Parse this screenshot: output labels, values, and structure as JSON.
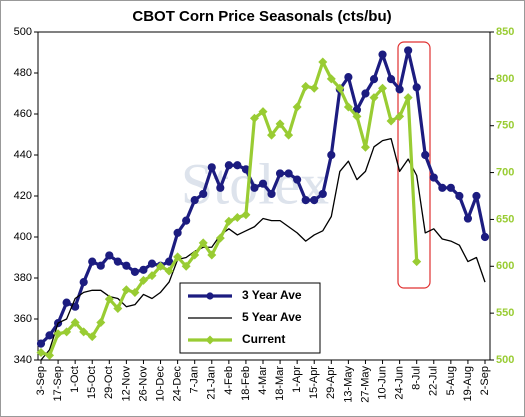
{
  "chart_data": {
    "type": "line",
    "title": "CBOT Corn Price Seasonals (cts/bu)",
    "categories": [
      "3-Sep",
      null,
      "17-Sep",
      null,
      "1-Oct",
      null,
      "15-Oct",
      null,
      "29-Oct",
      null,
      "12-Nov",
      null,
      "26-Nov",
      null,
      "10-Dec",
      null,
      "24-Dec",
      null,
      "7-Jan",
      null,
      "21-Jan",
      null,
      "4-Feb",
      null,
      "18-Feb",
      null,
      "4-Mar",
      null,
      "18-Mar",
      null,
      "1-Apr",
      null,
      "15-Apr",
      null,
      "29-Apr",
      null,
      "13-May",
      null,
      "27-May",
      null,
      "10-Jun",
      null,
      "24-Jun",
      null,
      "8-Jul",
      null,
      "22-Jul",
      null,
      "5-Aug",
      null,
      "19-Aug",
      null,
      "2-Sep"
    ],
    "series": [
      {
        "name": "3 Year Ave",
        "color": "#1c1c80",
        "marker": "circle",
        "values": [
          348,
          352,
          358,
          368,
          366,
          378,
          388,
          386,
          391,
          388,
          386,
          383,
          384,
          387,
          386,
          388,
          402,
          408,
          418,
          421,
          434,
          424,
          435,
          435,
          433,
          424,
          426,
          421,
          431,
          431,
          428,
          418,
          418,
          421,
          440,
          472,
          478,
          462,
          470,
          477,
          489,
          477,
          472,
          491,
          473,
          440,
          429,
          424,
          424,
          420,
          409,
          420,
          400
        ]
      },
      {
        "name": "5 Year Ave",
        "color": "#000000",
        "marker": "none",
        "values": [
          340,
          345,
          358,
          360,
          370,
          373,
          374,
          374,
          371,
          370,
          366,
          367,
          372,
          370,
          373,
          378,
          389,
          390,
          393,
          395,
          395,
          401,
          404,
          401,
          403,
          405,
          409,
          408,
          408,
          405,
          402,
          398,
          401,
          403,
          410,
          432,
          437,
          428,
          432,
          444,
          447,
          448,
          432,
          438,
          430,
          402,
          404,
          399,
          398,
          396,
          388,
          390,
          378
        ]
      },
      {
        "name": "Current",
        "color": "#99cc33",
        "marker": "diamond",
        "axis": "y2",
        "values": [
          508,
          505,
          528,
          530,
          540,
          530,
          525,
          540,
          565,
          555,
          575,
          572,
          585,
          590,
          600,
          595,
          610,
          600,
          612,
          625,
          612,
          630,
          648,
          652,
          655,
          758,
          765,
          740,
          752,
          740,
          770,
          792,
          790,
          818,
          800,
          790,
          770,
          760,
          727,
          780,
          790,
          755,
          760,
          780,
          605,
          null,
          null,
          null,
          null,
          null,
          null,
          null,
          null
        ]
      }
    ],
    "ylim": [
      340,
      500
    ],
    "yticks": [
      340,
      360,
      380,
      400,
      420,
      440,
      460,
      480,
      500
    ],
    "y2lim": [
      500,
      850
    ],
    "y2ticks": [
      500,
      550,
      600,
      650,
      700,
      750,
      800,
      850
    ],
    "grid": false
  }
}
